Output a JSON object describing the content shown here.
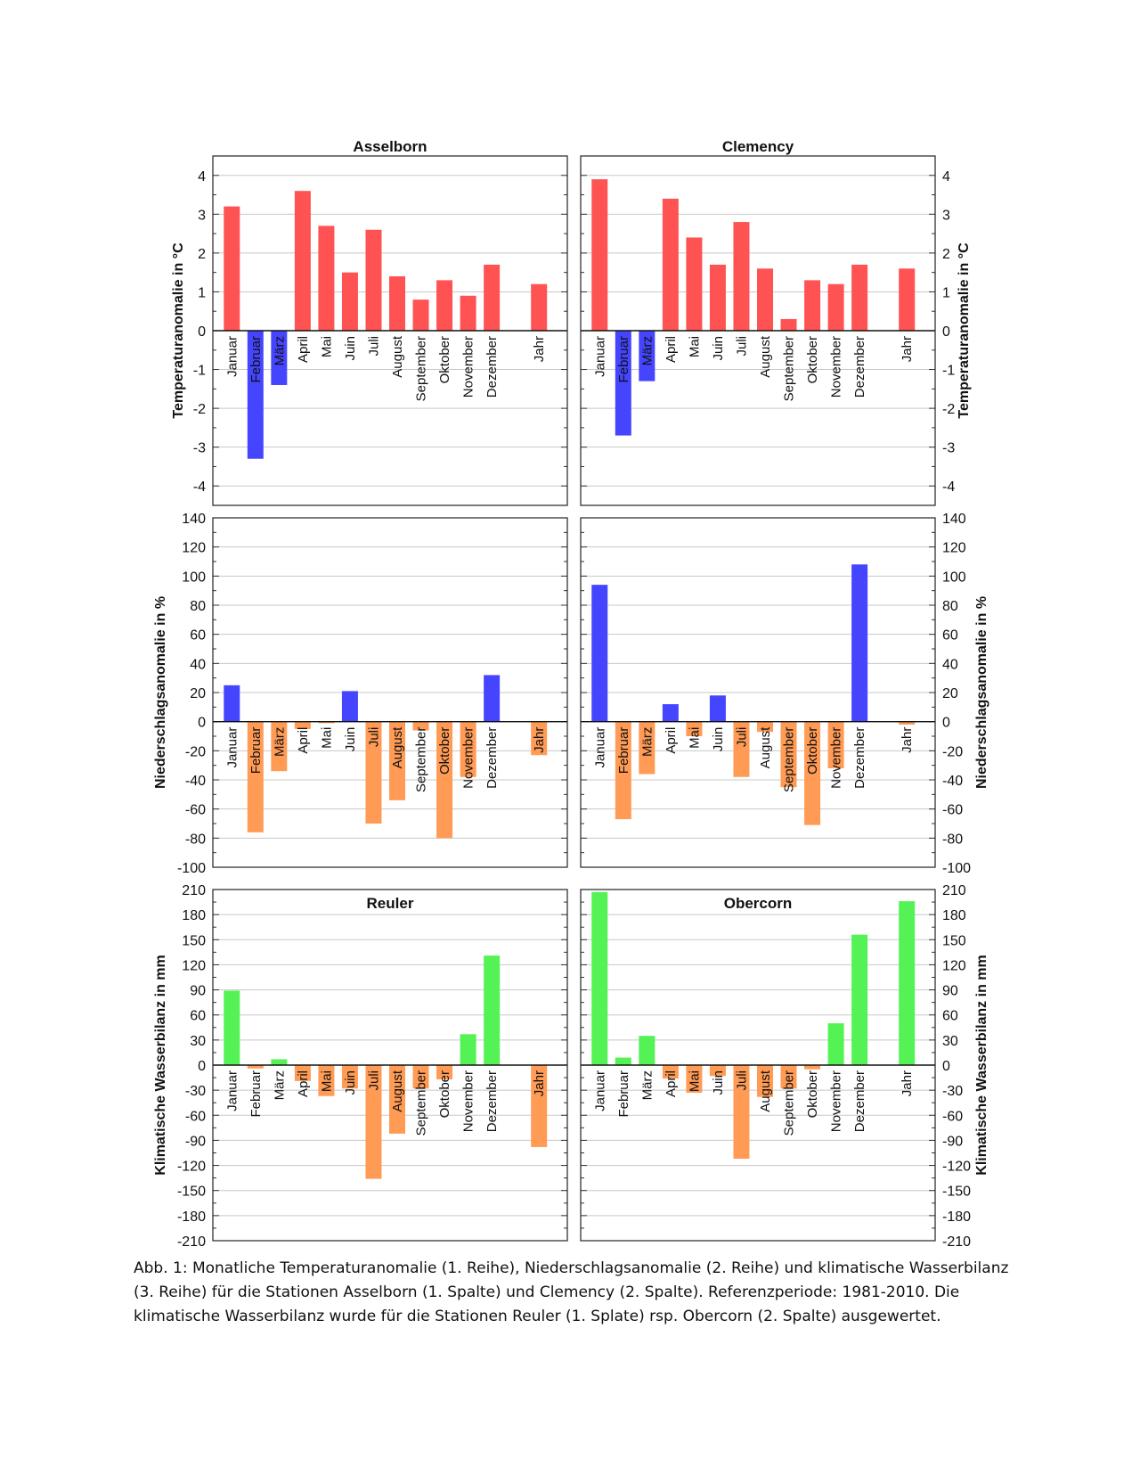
{
  "colors": {
    "warm": "#ff5353",
    "cold": "#4545ff",
    "wet": "#4545ff",
    "dry": "#ff9b55",
    "surplus": "#54f254",
    "deficit": "#ff9b55"
  },
  "chart_data": [
    {
      "type": "bar",
      "title": "Asselborn",
      "ylabel": "Temperaturanomalie in °C",
      "ylim": [
        -4.5,
        4.5
      ],
      "yticks": [
        -4,
        -3,
        -2,
        -1,
        0,
        1,
        2,
        3,
        4
      ],
      "categories": [
        "Januar",
        "Februar",
        "März",
        "April",
        "Mai",
        "Juin",
        "Juli",
        "August",
        "September",
        "Oktober",
        "November",
        "Dezember",
        "Jahr"
      ],
      "values": [
        3.2,
        -3.3,
        -1.4,
        3.6,
        2.7,
        1.5,
        2.6,
        1.4,
        0.8,
        1.3,
        0.9,
        1.7,
        1.2
      ],
      "grid": true
    },
    {
      "type": "bar",
      "title": "Clemency",
      "ylabel": "Temperaturanomalie in °C",
      "ylim": [
        -4.5,
        4.5
      ],
      "yticks": [
        -4,
        -3,
        -2,
        -1,
        0,
        1,
        2,
        3,
        4
      ],
      "categories": [
        "Januar",
        "Februar",
        "März",
        "April",
        "Mai",
        "Juin",
        "Juli",
        "August",
        "September",
        "Oktober",
        "November",
        "Dezember",
        "Jahr"
      ],
      "values": [
        3.9,
        -2.7,
        -1.3,
        3.4,
        2.4,
        1.7,
        2.8,
        1.6,
        0.3,
        1.3,
        1.2,
        1.7,
        1.6
      ],
      "grid": true
    },
    {
      "type": "bar",
      "title": "",
      "ylabel": "Niederschlagsanomalie in %",
      "ylim": [
        -100,
        140
      ],
      "yticks": [
        -100,
        -80,
        -60,
        -40,
        -20,
        0,
        20,
        40,
        60,
        80,
        100,
        120,
        140
      ],
      "categories": [
        "Januar",
        "Februar",
        "März",
        "April",
        "Mai",
        "Juin",
        "Juli",
        "August",
        "September",
        "Oktober",
        "November",
        "Dezember",
        "Jahr"
      ],
      "values": [
        25,
        -76,
        -34,
        -5,
        -1,
        21,
        -70,
        -54,
        -6,
        -80,
        -38,
        32,
        -23
      ],
      "grid": true
    },
    {
      "type": "bar",
      "title": "",
      "ylabel": "Niederschlagsanomalie in %",
      "ylim": [
        -100,
        140
      ],
      "yticks": [
        -100,
        -80,
        -60,
        -40,
        -20,
        0,
        20,
        40,
        60,
        80,
        100,
        120,
        140
      ],
      "categories": [
        "Januar",
        "Februar",
        "März",
        "April",
        "Mai",
        "Juin",
        "Juli",
        "August",
        "September",
        "Oktober",
        "November",
        "Dezember",
        "Jahr"
      ],
      "values": [
        94,
        -67,
        -36,
        12,
        -10,
        18,
        -38,
        -7,
        -45,
        -71,
        -32,
        108,
        -2
      ],
      "grid": true
    },
    {
      "type": "bar",
      "title": "Reuler",
      "ylabel": "Klimatische Wasserbilanz in mm",
      "ylim": [
        -210,
        210
      ],
      "yticks": [
        -210,
        -180,
        -150,
        -120,
        -90,
        -60,
        -30,
        0,
        30,
        60,
        90,
        120,
        150,
        180,
        210
      ],
      "categories": [
        "Januar",
        "Februar",
        "März",
        "April",
        "Mai",
        "Juin",
        "Juli",
        "August",
        "September",
        "Oktober",
        "November",
        "Dezember",
        "Jahr"
      ],
      "values": [
        89,
        -4,
        7,
        -19,
        -37,
        -28,
        -136,
        -82,
        -28,
        -17,
        37,
        131,
        -98
      ],
      "grid": true
    },
    {
      "type": "bar",
      "title": "Obercorn",
      "ylabel": "Klimatische Wasserbilanz in mm",
      "ylim": [
        -210,
        210
      ],
      "yticks": [
        -210,
        -180,
        -150,
        -120,
        -90,
        -60,
        -30,
        0,
        30,
        60,
        90,
        120,
        150,
        180,
        210
      ],
      "categories": [
        "Januar",
        "Februar",
        "März",
        "April",
        "Mai",
        "Juin",
        "Juli",
        "August",
        "September",
        "Oktober",
        "November",
        "Dezember",
        "Jahr"
      ],
      "values": [
        207,
        9,
        35,
        -16,
        -33,
        -13,
        -112,
        -38,
        -28,
        -5,
        50,
        156,
        196
      ],
      "grid": true
    }
  ],
  "caption": {
    "line1": "Abb. 1: Monatliche Temperaturanomalie (1. Reihe), Niederschlagsanomalie (2. Reihe) und klimatische Wasserbilanz",
    "line2": "(3. Reihe) für die Stationen Asselborn (1. Spalte) und Clemency (2. Spalte). Referenzperiode: 1981-2010. Die",
    "line3": "klimatische Wasserbilanz wurde für die Stationen Reuler (1. Splate) rsp. Obercorn (2. Spalte) ausgewertet."
  }
}
